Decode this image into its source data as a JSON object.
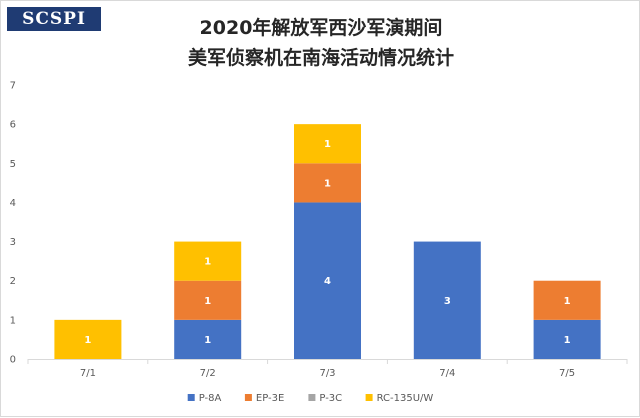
{
  "logo_text": "SCSPI",
  "chart_data": {
    "type": "bar",
    "stacked": true,
    "title_lines": [
      "2020年解放军西沙军演期间",
      "美军侦察机在南海活动情况统计"
    ],
    "categories": [
      "7/1",
      "7/2",
      "7/3",
      "7/4",
      "7/5"
    ],
    "series": [
      {
        "name": "P-8A",
        "color": "#4472c4",
        "values": [
          0,
          1,
          4,
          3,
          1
        ]
      },
      {
        "name": "EP-3E",
        "color": "#ed7d31",
        "values": [
          0,
          1,
          1,
          0,
          1
        ]
      },
      {
        "name": "P-3C",
        "color": "#a5a5a5",
        "values": [
          0,
          0,
          0,
          0,
          0
        ]
      },
      {
        "name": "RC-135U/W",
        "color": "#ffc000",
        "values": [
          1,
          1,
          1,
          0,
          0
        ]
      }
    ],
    "ylim": [
      0,
      7
    ],
    "yticks": [
      0,
      1,
      2,
      3,
      4,
      5,
      6,
      7
    ],
    "grid": false,
    "legend": "bottom"
  }
}
